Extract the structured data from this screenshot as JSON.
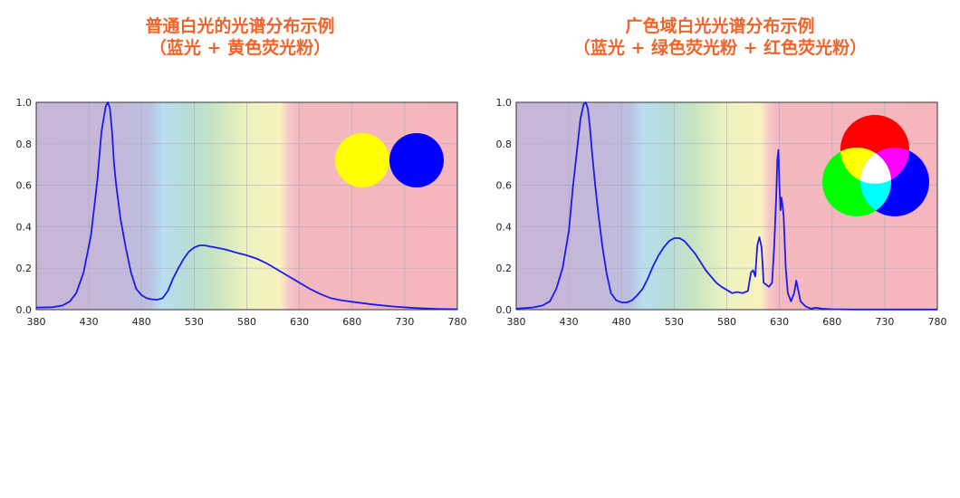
{
  "chart_data": [
    {
      "type": "line",
      "title": "普通白光的光谱分布示例",
      "subtitle": "（蓝光 + 黄色荧光粉）",
      "xlabel": "",
      "ylabel": "",
      "xlim": [
        380,
        780
      ],
      "ylim": [
        0,
        1.0
      ],
      "x_ticks": [
        380,
        430,
        480,
        530,
        580,
        630,
        680,
        730,
        780
      ],
      "y_ticks": [
        0.0,
        0.2,
        0.4,
        0.6,
        0.8,
        1.0
      ],
      "y_tick_labels": [
        "0.0",
        "0.2",
        "0.4",
        "0.6",
        "0.8",
        "1.0"
      ],
      "grid": true,
      "background": "visible-spectrum-bands",
      "color_mixing_icon": [
        "#ffff00",
        "#0000ff"
      ],
      "series": [
        {
          "color": "#1a1aee",
          "x": [
            380,
            395,
            405,
            412,
            418,
            425,
            432,
            438,
            442,
            446,
            448,
            450,
            452,
            454,
            456,
            460,
            465,
            470,
            475,
            480,
            485,
            490,
            495,
            500,
            505,
            510,
            515,
            520,
            525,
            530,
            535,
            540,
            545,
            550,
            560,
            570,
            580,
            590,
            600,
            610,
            620,
            630,
            640,
            650,
            660,
            670,
            680,
            700,
            720,
            740,
            760,
            780
          ],
          "y": [
            0.01,
            0.012,
            0.02,
            0.04,
            0.08,
            0.18,
            0.36,
            0.62,
            0.86,
            0.98,
            1.0,
            0.97,
            0.86,
            0.7,
            0.6,
            0.44,
            0.3,
            0.18,
            0.1,
            0.07,
            0.055,
            0.05,
            0.048,
            0.055,
            0.09,
            0.15,
            0.2,
            0.245,
            0.28,
            0.3,
            0.31,
            0.31,
            0.305,
            0.3,
            0.29,
            0.275,
            0.262,
            0.245,
            0.22,
            0.19,
            0.16,
            0.13,
            0.1,
            0.075,
            0.055,
            0.045,
            0.038,
            0.025,
            0.015,
            0.008,
            0.004,
            0.002
          ]
        }
      ]
    },
    {
      "type": "line",
      "title": "广色域白光光谱分布示例",
      "subtitle": "（蓝光 + 绿色荧光粉 + 红色荧光粉）",
      "xlabel": "",
      "ylabel": "",
      "xlim": [
        380,
        780
      ],
      "ylim": [
        0,
        1.0
      ],
      "x_ticks": [
        380,
        430,
        480,
        530,
        580,
        630,
        680,
        730,
        780
      ],
      "y_ticks": [
        0.0,
        0.2,
        0.4,
        0.6,
        0.8,
        1.0
      ],
      "y_tick_labels": [
        "0.0",
        "0.2",
        "0.4",
        "0.6",
        "0.8",
        "1.0"
      ],
      "grid": true,
      "background": "visible-spectrum-bands",
      "color_mixing_icon": [
        "#ff0000",
        "#00ff00",
        "#0000ff"
      ],
      "series": [
        {
          "color": "#1a1aee",
          "x": [
            380,
            395,
            405,
            412,
            418,
            424,
            430,
            434,
            438,
            441,
            444,
            446,
            448,
            450,
            452,
            455,
            458,
            462,
            466,
            470,
            475,
            480,
            485,
            490,
            495,
            500,
            505,
            510,
            515,
            520,
            525,
            530,
            535,
            540,
            545,
            550,
            555,
            560,
            565,
            570,
            575,
            580,
            585,
            590,
            595,
            600,
            603,
            605,
            607,
            609,
            611,
            613,
            615,
            620,
            623,
            625,
            627,
            628,
            629,
            630,
            631,
            632,
            633,
            634,
            636,
            638,
            641,
            644,
            646,
            648,
            650,
            655,
            660,
            665,
            670,
            680,
            700,
            720,
            740,
            760,
            780
          ],
          "y": [
            0.005,
            0.01,
            0.02,
            0.04,
            0.1,
            0.2,
            0.38,
            0.6,
            0.78,
            0.92,
            0.99,
            1.0,
            0.97,
            0.88,
            0.76,
            0.6,
            0.46,
            0.3,
            0.17,
            0.08,
            0.045,
            0.035,
            0.035,
            0.045,
            0.07,
            0.1,
            0.15,
            0.21,
            0.26,
            0.3,
            0.33,
            0.345,
            0.345,
            0.33,
            0.3,
            0.27,
            0.23,
            0.19,
            0.16,
            0.13,
            0.11,
            0.095,
            0.08,
            0.085,
            0.08,
            0.09,
            0.18,
            0.19,
            0.16,
            0.31,
            0.35,
            0.3,
            0.13,
            0.11,
            0.13,
            0.3,
            0.55,
            0.72,
            0.77,
            0.6,
            0.48,
            0.54,
            0.5,
            0.45,
            0.2,
            0.08,
            0.04,
            0.08,
            0.14,
            0.09,
            0.04,
            0.015,
            0.005,
            0.01,
            0.005,
            0.002,
            0.001,
            0.001,
            0.001,
            0.001,
            0.001
          ]
        }
      ]
    }
  ]
}
